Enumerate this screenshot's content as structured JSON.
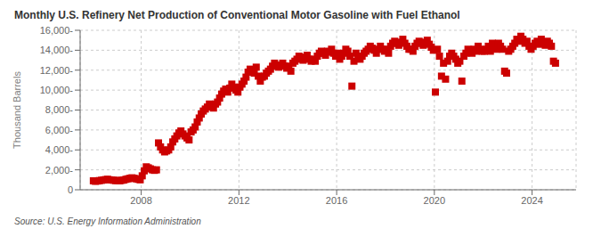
{
  "chart_data": {
    "type": "scatter",
    "title": "Monthly U.S. Refinery Net Production of Conventional Motor Gasoline with Fuel Ethanol",
    "ylabel": "Thousand Barrels",
    "source": "Source: U.S. Energy Information Administration",
    "color": "#cc0000",
    "marker": "square",
    "grid": true,
    "xlim": [
      2005.5,
      2025.8
    ],
    "xticks": [
      2008,
      2012,
      2016,
      2020,
      2024
    ],
    "ylim": [
      0,
      16000
    ],
    "yticks": [
      0,
      {
        "value": 2000,
        "label": "2,000-"
      },
      {
        "value": 4000,
        "label": "4,000-"
      },
      {
        "value": 6000,
        "label": "6,000-"
      },
      {
        "value": 8000,
        "label": "8,000-"
      },
      {
        "value": 10000,
        "label": "10,000-"
      },
      {
        "value": 12000,
        "label": "12,000-"
      },
      {
        "value": 14000,
        "label": "14,000-"
      },
      {
        "value": 16000,
        "label": "16,000-"
      }
    ],
    "x": [
      2006.0416666666667,
      2006.125,
      2006.2083333333333,
      2006.2916666666667,
      2006.375,
      2006.4583333333333,
      2006.5416666666667,
      2006.625,
      2006.7083333333333,
      2006.7916666666667,
      2006.875,
      2006.9583333333333,
      2007.0416666666667,
      2007.125,
      2007.2083333333333,
      2007.2916666666667,
      2007.375,
      2007.4583333333333,
      2007.5416666666667,
      2007.625,
      2007.7083333333333,
      2007.7916666666667,
      2007.875,
      2007.9583333333333,
      2008.0416666666667,
      2008.125,
      2008.2083333333333,
      2008.2916666666667,
      2008.375,
      2008.4583333333333,
      2008.5416666666667,
      2008.625,
      2008.7083333333333,
      2008.7916666666667,
      2008.875,
      2008.9583333333333,
      2009.0416666666667,
      2009.125,
      2009.2083333333333,
      2009.2916666666667,
      2009.375,
      2009.4583333333333,
      2009.5416666666667,
      2009.625,
      2009.7083333333333,
      2009.7916666666667,
      2009.875,
      2009.9583333333333,
      2010.0416666666667,
      2010.125,
      2010.2083333333333,
      2010.2916666666667,
      2010.375,
      2010.4583333333333,
      2010.5416666666667,
      2010.625,
      2010.7083333333333,
      2010.7916666666667,
      2010.875,
      2010.9583333333333,
      2011.0416666666667,
      2011.125,
      2011.2083333333333,
      2011.2916666666667,
      2011.375,
      2011.4583333333333,
      2011.5416666666667,
      2011.625,
      2011.7083333333333,
      2011.7916666666667,
      2011.875,
      2011.9583333333333,
      2012.0416666666667,
      2012.125,
      2012.2083333333333,
      2012.2916666666667,
      2012.375,
      2012.4583333333333,
      2012.5416666666667,
      2012.625,
      2012.7083333333333,
      2012.7916666666667,
      2012.875,
      2012.9583333333333,
      2013.0416666666667,
      2013.125,
      2013.2083333333333,
      2013.2916666666667,
      2013.375,
      2013.4583333333333,
      2013.5416666666667,
      2013.625,
      2013.7083333333333,
      2013.7916666666667,
      2013.875,
      2013.9583333333333,
      2014.0416666666667,
      2014.125,
      2014.2083333333333,
      2014.2916666666667,
      2014.375,
      2014.4583333333333,
      2014.5416666666667,
      2014.625,
      2014.7083333333333,
      2014.7916666666667,
      2014.875,
      2014.9583333333333,
      2015.0416666666667,
      2015.125,
      2015.2083333333333,
      2015.2916666666667,
      2015.375,
      2015.4583333333333,
      2015.5416666666667,
      2015.625,
      2015.7083333333333,
      2015.7916666666667,
      2015.875,
      2015.9583333333333,
      2016.0416666666667,
      2016.125,
      2016.2083333333333,
      2016.2916666666667,
      2016.375,
      2016.4583333333333,
      2016.5416666666667,
      2016.625,
      2016.7083333333333,
      2016.7916666666667,
      2016.875,
      2016.9583333333333,
      2017.0416666666667,
      2017.125,
      2017.2083333333333,
      2017.2916666666667,
      2017.375,
      2017.4583333333333,
      2017.5416666666667,
      2017.625,
      2017.7083333333333,
      2017.7916666666667,
      2017.875,
      2017.9583333333333,
      2018.0416666666667,
      2018.125,
      2018.2083333333333,
      2018.2916666666667,
      2018.375,
      2018.4583333333333,
      2018.5416666666667,
      2018.625,
      2018.7083333333333,
      2018.7916666666667,
      2018.875,
      2018.9583333333333,
      2019.0416666666667,
      2019.125,
      2019.2083333333333,
      2019.2916666666667,
      2019.375,
      2019.4583333333333,
      2019.5416666666667,
      2019.625,
      2019.7083333333333,
      2019.7916666666667,
      2019.875,
      2019.9583333333333,
      2020.0416666666667,
      2020.125,
      2020.2083333333333,
      2020.2916666666667,
      2020.375,
      2020.4583333333333,
      2020.5416666666667,
      2020.625,
      2020.7083333333333,
      2020.7916666666667,
      2020.875,
      2020.9583333333333,
      2021.0416666666667,
      2021.125,
      2021.2083333333333,
      2021.2916666666667,
      2021.375,
      2021.4583333333333,
      2021.5416666666667,
      2021.625,
      2021.7083333333333,
      2021.7916666666667,
      2021.875,
      2021.9583333333333,
      2022.0416666666667,
      2022.125,
      2022.2083333333333,
      2022.2916666666667,
      2022.375,
      2022.4583333333333,
      2022.5416666666667,
      2022.625,
      2022.7083333333333,
      2022.7916666666667,
      2022.875,
      2022.9583333333333,
      2023.0416666666667,
      2023.125,
      2023.2083333333333,
      2023.2916666666667,
      2023.375,
      2023.4583333333333,
      2023.5416666666667,
      2023.625,
      2023.7083333333333,
      2023.7916666666667,
      2023.875,
      2023.9583333333333,
      2024.0416666666667,
      2024.125,
      2024.2083333333333,
      2024.2916666666667,
      2024.375,
      2024.4583333333333,
      2024.5416666666667,
      2024.625,
      2024.7083333333333,
      2024.7916666666667,
      2024.875,
      2024.9583333333333
    ],
    "values": [
      900,
      850,
      880,
      920,
      950,
      980,
      1020,
      1050,
      1000,
      980,
      950,
      920,
      930,
      900,
      950,
      980,
      1050,
      1100,
      1150,
      1200,
      1150,
      1100,
      1050,
      1000,
      1400,
      1900,
      2300,
      2200,
      2100,
      2000,
      1950,
      2000,
      4700,
      4300,
      4000,
      3800,
      3900,
      4000,
      4300,
      4800,
      5100,
      5400,
      5700,
      5900,
      5600,
      5400,
      5200,
      5000,
      5800,
      6000,
      6300,
      6800,
      7200,
      7600,
      7900,
      8100,
      8300,
      8600,
      8400,
      8200,
      8600,
      8800,
      9200,
      9600,
      9900,
      10100,
      9800,
      10200,
      10600,
      10300,
      10000,
      9800,
      10300,
      10600,
      10900,
      11300,
      11800,
      12100,
      11900,
      11700,
      12300,
      11400,
      10900,
      11300,
      11400,
      11700,
      11900,
      12100,
      12400,
      12700,
      12500,
      12300,
      12500,
      12700,
      12400,
      12200,
      12400,
      11900,
      12700,
      12900,
      13100,
      13400,
      13200,
      13000,
      13300,
      13500,
      13100,
      12900,
      13100,
      12900,
      13400,
      13700,
      13900,
      13700,
      13500,
      13900,
      13800,
      14100,
      13700,
      13400,
      13700,
      13100,
      13400,
      13700,
      14100,
      13900,
      13400,
      10400,
      12900,
      13700,
      13400,
      13100,
      13400,
      13700,
      13900,
      14100,
      14400,
      14200,
      14000,
      13700,
      14100,
      14400,
      14100,
      13900,
      14100,
      13700,
      14400,
      14700,
      14900,
      14700,
      14500,
      14800,
      15100,
      14700,
      14400,
      14100,
      14100,
      13900,
      14400,
      14700,
      14900,
      14700,
      14500,
      14800,
      15000,
      14600,
      14300,
      14000,
      9800,
      14100,
      13400,
      11400,
      12700,
      11100,
      12900,
      13400,
      13700,
      13400,
      13100,
      12700,
      12900,
      10900,
      13400,
      13700,
      14100,
      13900,
      13700,
      14100,
      13900,
      14400,
      14100,
      13900,
      13900,
      14100,
      14400,
      13900,
      14700,
      14400,
      14100,
      14700,
      14400,
      14100,
      11900,
      11700,
      13900,
      14100,
      14400,
      14700,
      15100,
      14900,
      15400,
      15100,
      14700,
      14900,
      14400,
      14100,
      14400,
      14700,
      14900,
      14600,
      15100,
      14800,
      14500,
      14900,
      14700,
      14400,
      12900,
      12700
    ]
  }
}
